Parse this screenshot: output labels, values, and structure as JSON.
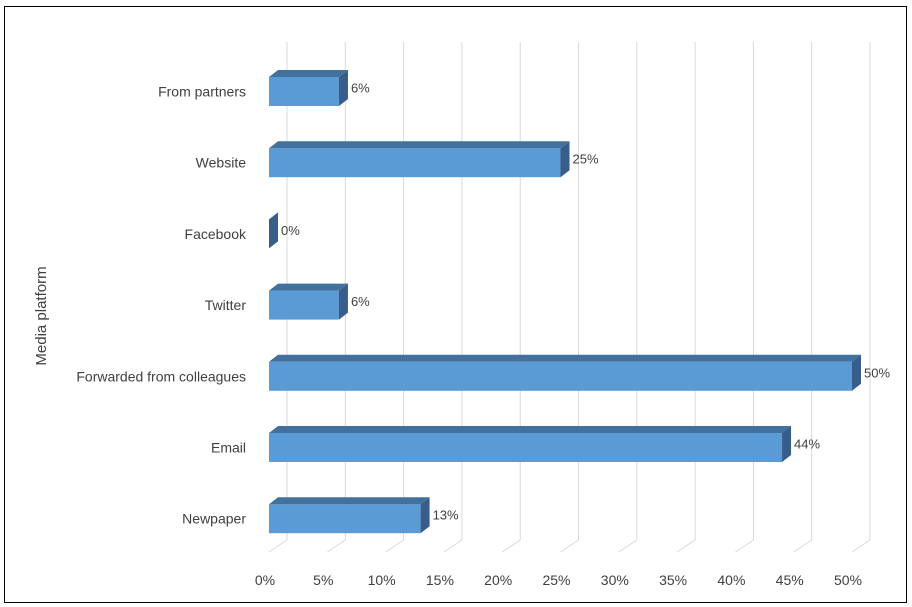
{
  "chart_data": {
    "type": "bar",
    "orientation": "horizontal",
    "style": "3d",
    "categories": [
      "From partners",
      "Website",
      "Facebook",
      "Twitter",
      "Forwarded from colleagues",
      "Email",
      "Newpaper"
    ],
    "values": [
      6,
      25,
      0,
      6,
      50,
      44,
      13
    ],
    "data_labels": [
      "6%",
      "25%",
      "0%",
      "6%",
      "50%",
      "44%",
      "13%"
    ],
    "ticks": [
      "0%",
      "5%",
      "10%",
      "15%",
      "20%",
      "25%",
      "30%",
      "35%",
      "40%",
      "45%",
      "50%"
    ],
    "title": "",
    "xlabel": "",
    "ylabel": "Media platform",
    "xlim": [
      0,
      50
    ],
    "grid": true,
    "legend": "none",
    "colors": {
      "front": "#5b9bd5",
      "top": "#41719c",
      "side": "#385d8a",
      "grid": "#d9d9d9"
    }
  }
}
